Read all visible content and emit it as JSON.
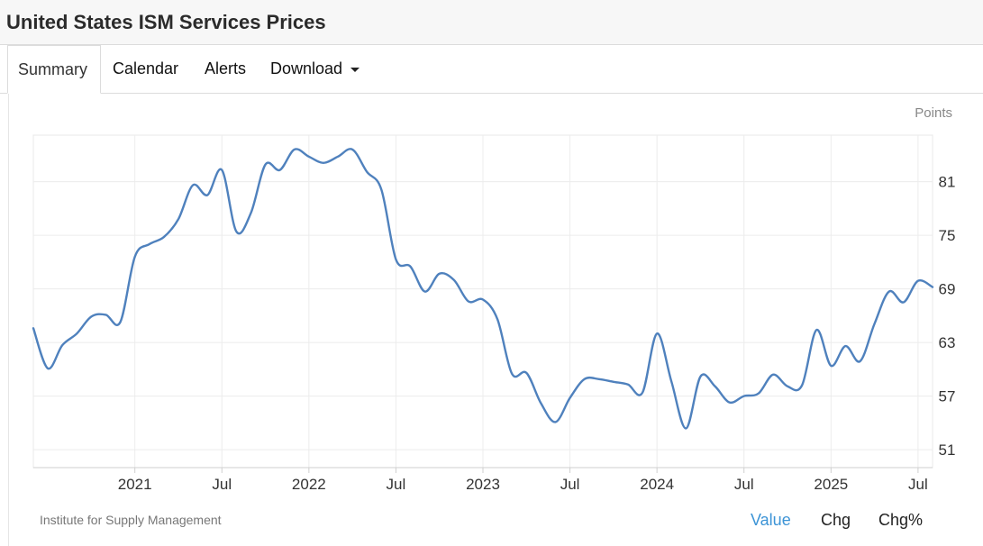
{
  "page": {
    "title": "United States ISM Services Prices"
  },
  "tabs": [
    {
      "label": "Summary",
      "active": true
    },
    {
      "label": "Calendar",
      "active": false
    },
    {
      "label": "Alerts",
      "active": false
    },
    {
      "label": "Download",
      "active": false,
      "has_dropdown": true
    }
  ],
  "chart": {
    "units_label": "Points",
    "source": "Institute for Supply Management",
    "view_toggles": [
      {
        "label": "Value",
        "active": true
      },
      {
        "label": "Chg",
        "active": false
      },
      {
        "label": "Chg%",
        "active": false
      }
    ]
  },
  "colors": {
    "line": "#4f81bd",
    "active_toggle": "#3d94d6",
    "grid": "#ececec"
  },
  "chart_data": {
    "type": "line",
    "title": "",
    "xlabel": "",
    "ylabel": "",
    "ylim": [
      49,
      86.2
    ],
    "xlim": [
      "2020-06",
      "2025-08"
    ],
    "y_ticks": [
      51,
      57,
      63,
      69,
      75,
      81
    ],
    "x_ticks": [
      {
        "date": "2021-01",
        "label": "2021"
      },
      {
        "date": "2021-07",
        "label": "Jul"
      },
      {
        "date": "2022-01",
        "label": "2022"
      },
      {
        "date": "2022-07",
        "label": "Jul"
      },
      {
        "date": "2023-01",
        "label": "2023"
      },
      {
        "date": "2023-07",
        "label": "Jul"
      },
      {
        "date": "2024-01",
        "label": "2024"
      },
      {
        "date": "2024-07",
        "label": "Jul"
      },
      {
        "date": "2025-01",
        "label": "2025"
      },
      {
        "date": "2025-07",
        "label": "Jul"
      }
    ],
    "grid": true,
    "legend": "none",
    "series": [
      {
        "x": [
          "2020-06",
          "2020-07",
          "2020-08",
          "2020-09",
          "2020-10",
          "2020-11",
          "2020-12",
          "2021-01",
          "2021-02",
          "2021-03",
          "2021-04",
          "2021-05",
          "2021-06",
          "2021-07",
          "2021-08",
          "2021-09",
          "2021-10",
          "2021-11",
          "2021-12",
          "2022-01",
          "2022-02",
          "2022-03",
          "2022-04",
          "2022-05",
          "2022-06",
          "2022-07",
          "2022-08",
          "2022-09",
          "2022-10",
          "2022-11",
          "2022-12",
          "2023-01",
          "2023-02",
          "2023-03",
          "2023-04",
          "2023-05",
          "2023-06",
          "2023-07",
          "2023-08",
          "2023-09",
          "2023-10",
          "2023-11",
          "2023-12",
          "2024-01",
          "2024-02",
          "2024-03",
          "2024-04",
          "2024-05",
          "2024-06",
          "2024-07",
          "2024-08",
          "2024-09",
          "2024-10",
          "2024-11",
          "2024-12",
          "2025-01",
          "2025-02",
          "2025-03",
          "2025-04",
          "2025-05",
          "2025-06",
          "2025-07",
          "2025-08"
        ],
        "values": [
          64.6,
          60.1,
          62.7,
          64.0,
          65.9,
          66.1,
          65.3,
          72.6,
          74.0,
          74.8,
          76.8,
          80.6,
          79.5,
          82.3,
          75.4,
          77.5,
          82.9,
          82.3,
          84.6,
          83.8,
          83.1,
          83.8,
          84.6,
          82.1,
          80.1,
          72.3,
          71.5,
          68.7,
          70.7,
          70.0,
          67.6,
          67.8,
          65.6,
          59.5,
          59.6,
          56.2,
          54.1,
          56.8,
          58.9,
          58.9,
          58.6,
          58.3,
          57.4,
          64.0,
          58.6,
          53.4,
          59.2,
          58.1,
          56.3,
          57.0,
          57.3,
          59.4,
          58.1,
          58.2,
          64.4,
          60.4,
          62.6,
          60.9,
          65.1,
          68.7,
          67.5,
          69.9,
          69.2
        ]
      }
    ]
  }
}
